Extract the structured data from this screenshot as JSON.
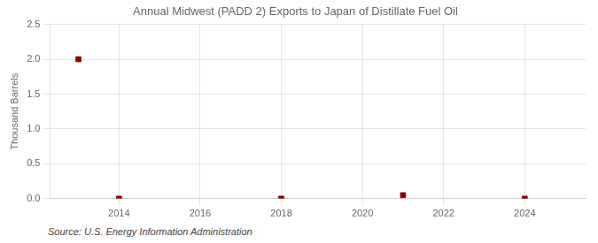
{
  "chart_data": {
    "type": "scatter",
    "title": "Annual Midwest (PADD 2) Exports to Japan of Distillate Fuel Oil",
    "ylabel": "Thousand Barrels",
    "source": "Source: U.S. Energy Information Administration",
    "x": [
      2013,
      2014,
      2018,
      2021,
      2024
    ],
    "values": [
      2.0,
      0.0,
      0.0,
      0.05,
      0.0
    ],
    "color": "#8b0000",
    "marker": "square",
    "xlim": [
      2012.3,
      2025.5
    ],
    "ylim": [
      0.0,
      2.5
    ],
    "xticks": [
      2014,
      2016,
      2018,
      2020,
      2022,
      2024
    ],
    "yticks": [
      {
        "value": 0.0,
        "label": "0.0"
      },
      0.5,
      {
        "value": 1.0,
        "label": "1.0"
      },
      1.5,
      {
        "value": 2.0,
        "label": "2.0"
      },
      2.5
    ],
    "grid": true
  }
}
